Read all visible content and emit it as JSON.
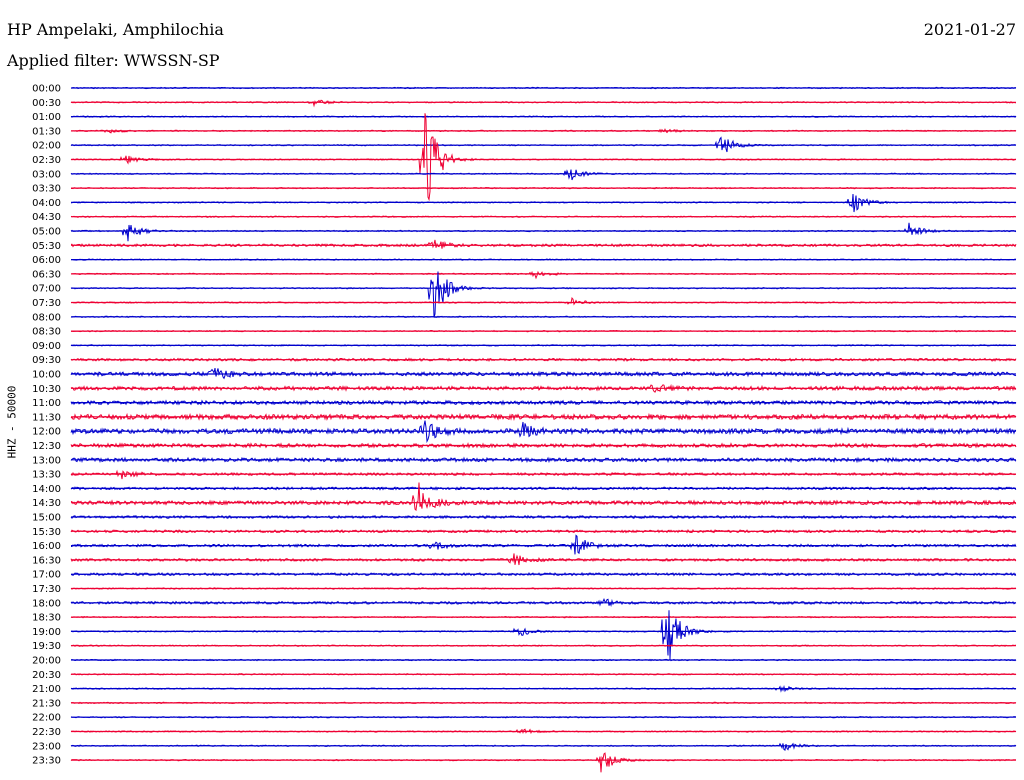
{
  "header": {
    "station": "HP Ampelaki, Amphilochia",
    "date": "2021-01-27",
    "filter": "Applied filter: WWSSN-SP"
  },
  "chart_data": {
    "type": "line",
    "title": "HP Ampelaki, Amphilochia",
    "subtitle": "Applied filter: WWSSN-SP",
    "date": "2021-01-27",
    "ylabel": "HHZ - 50000",
    "xlabel": "",
    "colors": {
      "odd_rows": "#0000cc",
      "even_rows": "#ee0033"
    },
    "rows": [
      "00:00",
      "00:30",
      "01:00",
      "01:30",
      "02:00",
      "02:30",
      "03:00",
      "03:30",
      "04:00",
      "04:30",
      "05:00",
      "05:30",
      "06:00",
      "06:30",
      "07:00",
      "07:30",
      "08:00",
      "08:30",
      "09:00",
      "09:30",
      "10:00",
      "10:30",
      "11:00",
      "11:30",
      "12:00",
      "12:30",
      "13:00",
      "13:30",
      "14:00",
      "14:30",
      "15:00",
      "15:30",
      "16:00",
      "16:30",
      "17:00",
      "17:30",
      "18:00",
      "18:30",
      "19:00",
      "19:30",
      "20:00",
      "20:30",
      "21:00",
      "21:30",
      "22:00",
      "22:30",
      "23:00",
      "23:30"
    ],
    "noise_level": [
      1,
      1,
      1,
      1,
      1,
      1,
      1,
      1,
      1,
      1,
      1,
      2,
      1,
      1,
      1,
      1,
      1,
      1,
      1,
      2,
      3,
      3,
      3,
      4,
      4,
      3,
      3,
      2,
      2,
      3,
      2,
      2,
      2,
      2,
      2,
      1,
      2,
      1,
      1,
      1,
      1,
      1,
      1,
      1,
      1,
      1,
      1,
      1
    ],
    "events": [
      {
        "row": "00:30",
        "minute": 7.7,
        "amplitude": 3
      },
      {
        "row": "01:30",
        "minute": 1.2,
        "amplitude": 2
      },
      {
        "row": "01:30",
        "minute": 18.8,
        "amplitude": 2
      },
      {
        "row": "02:00",
        "minute": 20.6,
        "amplitude": 14
      },
      {
        "row": "02:30",
        "minute": 11.2,
        "amplitude": 70
      },
      {
        "row": "02:30",
        "minute": 1.7,
        "amplitude": 5
      },
      {
        "row": "03:00",
        "minute": 15.8,
        "amplitude": 8
      },
      {
        "row": "04:00",
        "minute": 24.8,
        "amplitude": 12
      },
      {
        "row": "05:00",
        "minute": 1.8,
        "amplitude": 12
      },
      {
        "row": "05:00",
        "minute": 26.6,
        "amplitude": 8
      },
      {
        "row": "05:30",
        "minute": 11.5,
        "amplitude": 6
      },
      {
        "row": "06:30",
        "minute": 14.7,
        "amplitude": 5
      },
      {
        "row": "07:00",
        "minute": 11.5,
        "amplitude": 38
      },
      {
        "row": "07:30",
        "minute": 15.9,
        "amplitude": 4
      },
      {
        "row": "10:00",
        "minute": 4.5,
        "amplitude": 9
      },
      {
        "row": "10:30",
        "minute": 18.5,
        "amplitude": 6
      },
      {
        "row": "12:00",
        "minute": 11.2,
        "amplitude": 14
      },
      {
        "row": "12:00",
        "minute": 14.3,
        "amplitude": 9
      },
      {
        "row": "13:30",
        "minute": 1.6,
        "amplitude": 5
      },
      {
        "row": "14:30",
        "minute": 11.0,
        "amplitude": 22
      },
      {
        "row": "16:00",
        "minute": 16.0,
        "amplitude": 12
      },
      {
        "row": "16:00",
        "minute": 11.5,
        "amplitude": 5
      },
      {
        "row": "16:30",
        "minute": 14.0,
        "amplitude": 8
      },
      {
        "row": "18:00",
        "minute": 16.9,
        "amplitude": 4
      },
      {
        "row": "19:00",
        "minute": 18.9,
        "amplitude": 42
      },
      {
        "row": "19:00",
        "minute": 14.2,
        "amplitude": 6
      },
      {
        "row": "21:00",
        "minute": 22.5,
        "amplitude": 3
      },
      {
        "row": "22:30",
        "minute": 14.3,
        "amplitude": 3
      },
      {
        "row": "23:00",
        "minute": 22.6,
        "amplitude": 6
      },
      {
        "row": "23:30",
        "minute": 16.8,
        "amplitude": 16
      }
    ]
  }
}
